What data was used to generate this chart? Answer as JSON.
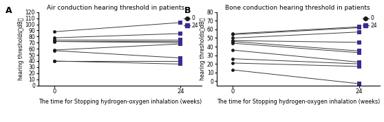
{
  "panel_A": {
    "title": "Air conduction hearing threshold in patients",
    "ylabel": "hearing thresholds（dB）",
    "xlabel": "The time for Stopping hydrogen-oxygen inhalation (weeks)",
    "ylim": [
      0,
      120
    ],
    "yticks": [
      0,
      10,
      20,
      30,
      40,
      50,
      60,
      70,
      80,
      90,
      100,
      110,
      120
    ],
    "xticks": [
      0,
      24
    ],
    "data_week0": [
      88,
      78,
      75,
      73,
      72,
      58,
      57,
      40,
      40
    ],
    "data_week24": [
      103,
      85,
      75,
      73,
      70,
      68,
      45,
      40,
      35
    ]
  },
  "panel_B": {
    "title": "Bone conduction hearing threshold in patients",
    "ylabel": "hearing thresholds（dB）",
    "xlabel": "The time for Stopping hydrogen-oxygen inhalation (weeks)",
    "ylim": [
      -5,
      80
    ],
    "yticks": [
      0,
      10,
      20,
      30,
      40,
      50,
      60,
      70,
      80
    ],
    "xticks": [
      0,
      24
    ],
    "data_week0": [
      55,
      54,
      50,
      47,
      46,
      44,
      36,
      26,
      21,
      13
    ],
    "data_week24": [
      63,
      62,
      57,
      45,
      35,
      33,
      22,
      20,
      17,
      -3
    ]
  },
  "circle_color": "#1a1a1a",
  "square_color": "#3d2b8e",
  "line_color": "#3a3a3a",
  "label_0": "0",
  "label_24": "24",
  "panel_label_A": "A",
  "panel_label_B": "B",
  "background_color": "#ffffff"
}
